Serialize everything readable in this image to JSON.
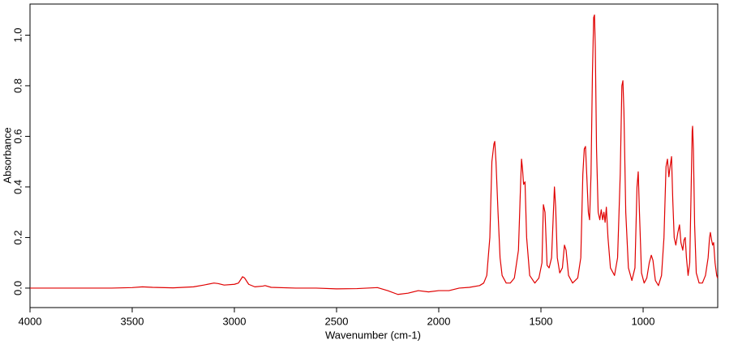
{
  "chart_data": {
    "type": "line",
    "x_label": "Wavenumber (cm-1)",
    "y_label": "Absorbance",
    "color": "#e00000",
    "xlim": [
      4000,
      635
    ],
    "ylim": [
      -0.077,
      1.123
    ],
    "xticks": [
      4000,
      3500,
      3000,
      2500,
      2000,
      1500,
      1000
    ],
    "yticks": [
      {
        "value": 0,
        "label": "0.0"
      },
      {
        "value": 0.2,
        "label": "0.2"
      },
      {
        "value": 0.4,
        "label": "0.4"
      },
      {
        "value": 0.6,
        "label": "0.6"
      },
      {
        "value": 0.8,
        "label": "0.8"
      },
      {
        "value": 1,
        "label": "1.0"
      }
    ],
    "x": [
      4000,
      3900,
      3800,
      3700,
      3600,
      3500,
      3450,
      3400,
      3300,
      3200,
      3150,
      3100,
      3080,
      3050,
      3000,
      2980,
      2960,
      2950,
      2930,
      2900,
      2860,
      2850,
      2820,
      2700,
      2600,
      2500,
      2400,
      2300,
      2250,
      2200,
      2150,
      2100,
      2050,
      2000,
      1950,
      1900,
      1850,
      1800,
      1780,
      1765,
      1750,
      1740,
      1730,
      1726,
      1720,
      1710,
      1700,
      1690,
      1670,
      1650,
      1630,
      1610,
      1600,
      1595,
      1590,
      1585,
      1578,
      1570,
      1555,
      1530,
      1510,
      1495,
      1488,
      1480,
      1470,
      1460,
      1448,
      1440,
      1434,
      1428,
      1420,
      1408,
      1395,
      1385,
      1377,
      1365,
      1345,
      1320,
      1305,
      1295,
      1288,
      1282,
      1276,
      1268,
      1262,
      1255,
      1248,
      1242,
      1238,
      1234,
      1228,
      1220,
      1212,
      1205,
      1198,
      1192,
      1186,
      1180,
      1172,
      1160,
      1140,
      1125,
      1112,
      1104,
      1099,
      1094,
      1085,
      1072,
      1055,
      1040,
      1030,
      1024,
      1018,
      1008,
      995,
      982,
      970,
      960,
      952,
      940,
      925,
      910,
      898,
      888,
      881,
      874,
      868,
      861,
      855,
      848,
      840,
      830,
      822,
      815,
      806,
      800,
      794,
      788,
      780,
      772,
      766,
      760,
      758,
      754,
      748,
      740,
      726,
      710,
      695,
      682,
      675,
      671,
      665,
      660,
      655,
      648,
      640,
      636
    ],
    "values": [
      0.0,
      0.0,
      0.0,
      0.0,
      0.0,
      0.002,
      0.005,
      0.003,
      0.001,
      0.005,
      0.012,
      0.02,
      0.018,
      0.012,
      0.015,
      0.02,
      0.045,
      0.04,
      0.015,
      0.005,
      0.008,
      0.01,
      0.003,
      0.0,
      0.0,
      -0.003,
      -0.002,
      0.002,
      -0.01,
      -0.025,
      -0.02,
      -0.01,
      -0.015,
      -0.01,
      -0.01,
      0.0,
      0.003,
      0.01,
      0.02,
      0.05,
      0.2,
      0.5,
      0.57,
      0.58,
      0.5,
      0.3,
      0.12,
      0.05,
      0.02,
      0.02,
      0.04,
      0.15,
      0.4,
      0.51,
      0.47,
      0.41,
      0.42,
      0.2,
      0.05,
      0.02,
      0.04,
      0.1,
      0.33,
      0.3,
      0.09,
      0.08,
      0.12,
      0.28,
      0.4,
      0.32,
      0.12,
      0.06,
      0.08,
      0.17,
      0.15,
      0.05,
      0.02,
      0.04,
      0.12,
      0.45,
      0.55,
      0.56,
      0.45,
      0.3,
      0.27,
      0.45,
      0.85,
      1.07,
      1.08,
      0.95,
      0.55,
      0.3,
      0.27,
      0.31,
      0.27,
      0.3,
      0.26,
      0.32,
      0.2,
      0.08,
      0.05,
      0.12,
      0.45,
      0.8,
      0.82,
      0.7,
      0.3,
      0.08,
      0.03,
      0.08,
      0.4,
      0.46,
      0.3,
      0.06,
      0.02,
      0.04,
      0.1,
      0.13,
      0.11,
      0.03,
      0.01,
      0.05,
      0.2,
      0.48,
      0.51,
      0.44,
      0.48,
      0.52,
      0.35,
      0.2,
      0.17,
      0.22,
      0.25,
      0.18,
      0.15,
      0.19,
      0.2,
      0.12,
      0.05,
      0.1,
      0.35,
      0.62,
      0.64,
      0.55,
      0.25,
      0.06,
      0.02,
      0.02,
      0.05,
      0.12,
      0.2,
      0.22,
      0.19,
      0.17,
      0.18,
      0.1,
      0.05,
      0.04
    ]
  }
}
